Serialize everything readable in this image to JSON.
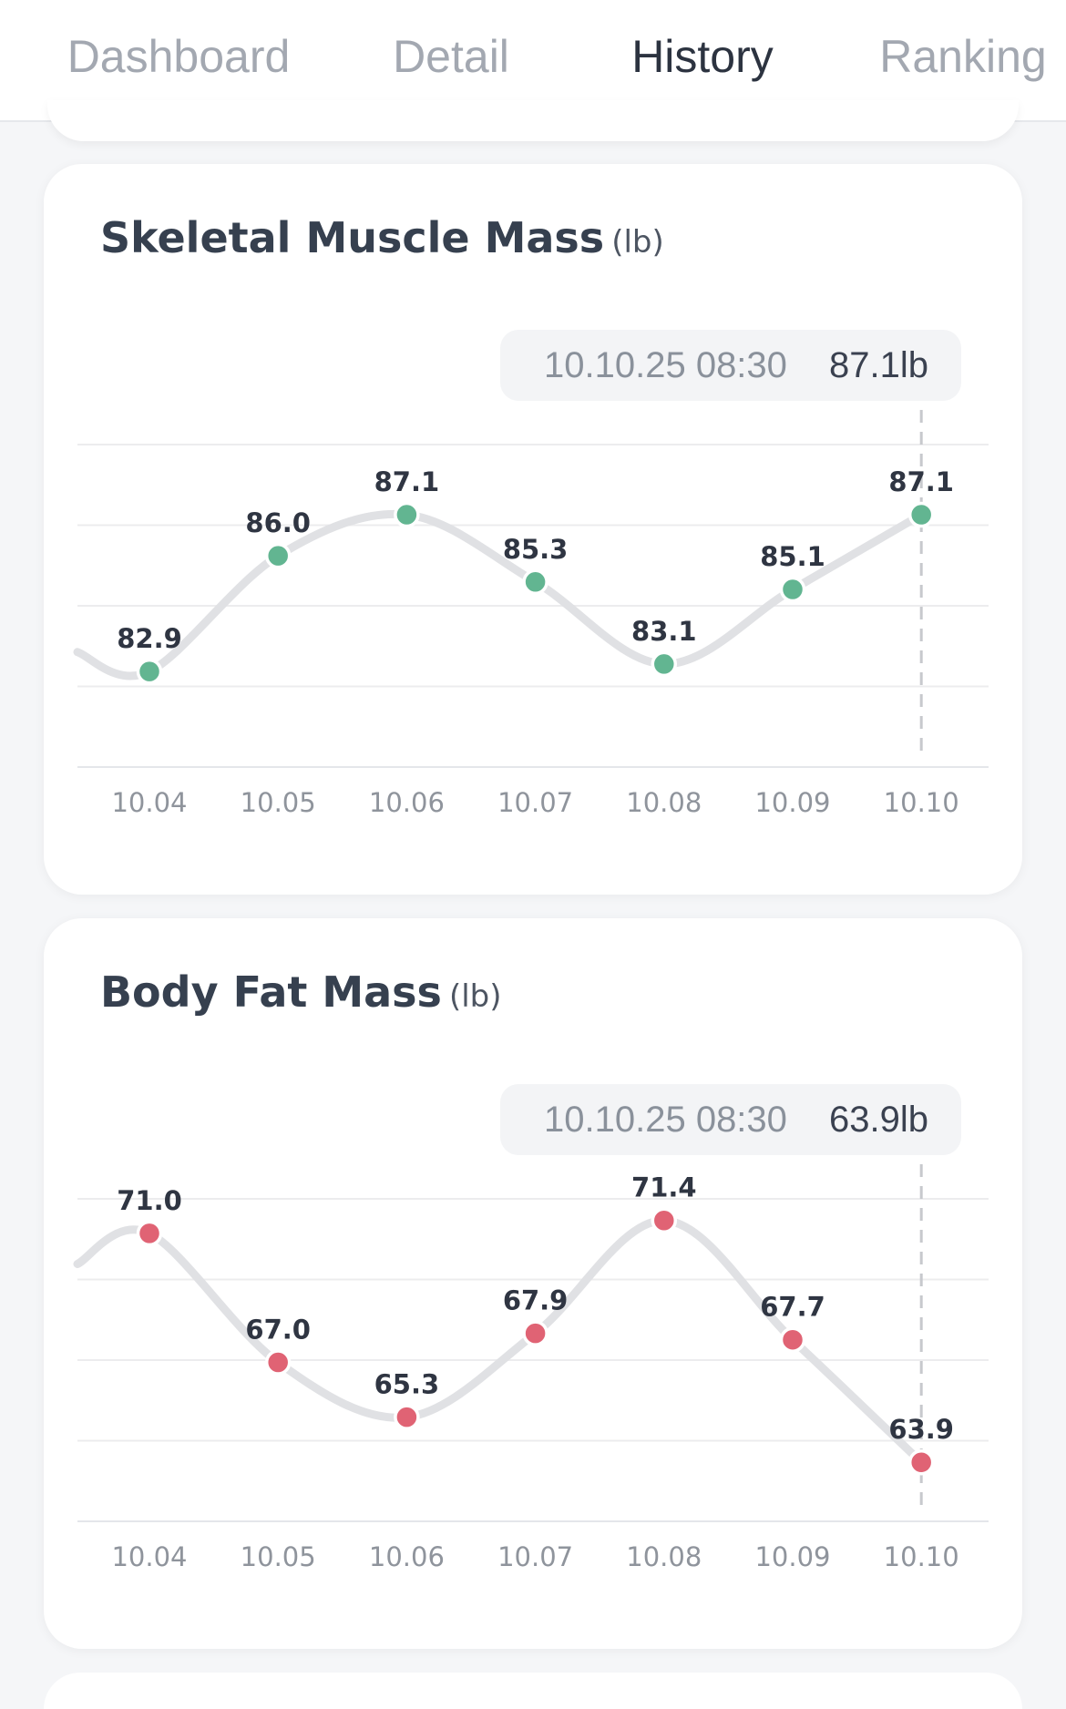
{
  "tabs": [
    {
      "label": "Dashboard",
      "active": false
    },
    {
      "label": "Detail",
      "active": false
    },
    {
      "label": "History",
      "active": true
    },
    {
      "label": "Ranking",
      "active": false
    }
  ],
  "cards": [
    {
      "title": "Skeletal Muscle Mass",
      "unit": "(lb)",
      "tooltip": {
        "date": "10.10.25 08:30",
        "value": "87.1lb"
      },
      "chart_data": {
        "type": "line",
        "categories": [
          "10.04",
          "10.05",
          "10.06",
          "10.07",
          "10.08",
          "10.09",
          "10.10"
        ],
        "values": [
          82.9,
          86.0,
          87.1,
          85.3,
          83.1,
          85.1,
          87.1
        ],
        "value_labels": [
          "82.9",
          "86.0",
          "87.1",
          "85.3",
          "83.1",
          "85.1",
          "87.1"
        ],
        "ylim": [
          80.34,
          88.98
        ],
        "lead_in_value": 83.42,
        "selected_index": 6,
        "grid": true,
        "color": "#62b591",
        "line_color": "#e0e1e4"
      }
    },
    {
      "title": "Body Fat Mass",
      "unit": "(lb)",
      "tooltip": {
        "date": "10.10.25 08:30",
        "value": "63.9lb"
      },
      "chart_data": {
        "type": "line",
        "categories": [
          "10.04",
          "10.05",
          "10.06",
          "10.07",
          "10.08",
          "10.09",
          "10.10"
        ],
        "values": [
          71.0,
          67.0,
          65.3,
          67.9,
          71.4,
          67.7,
          63.9
        ],
        "value_labels": [
          "71.0",
          "67.0",
          "65.3",
          "67.9",
          "71.4",
          "67.7",
          "63.9"
        ],
        "ylim": [
          62.07,
          72.07
        ],
        "lead_in_value": 70.05,
        "selected_index": 6,
        "grid": true,
        "color": "#e06374",
        "line_color": "#e0e1e4"
      }
    }
  ]
}
